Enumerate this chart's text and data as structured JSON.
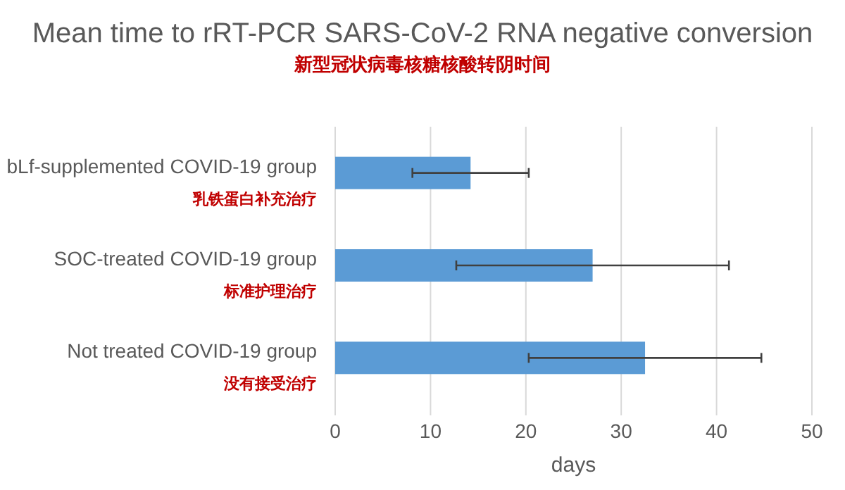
{
  "chart_data": {
    "type": "bar",
    "orientation": "horizontal",
    "title": "Mean time to rRT-PCR SARS-CoV-2 RNA negative conversion",
    "subtitle": "新型冠状病毒核糖核酸转阴时间",
    "categories": [
      "bLf-supplemented COVID-19 group\n乳铁蛋白补充治疗",
      "SOC-treated COVID-19 group\n标准护理治疗",
      "Not treated COVID-19 group\n没有接受治疗"
    ],
    "values": [
      14.2,
      27.0,
      32.5
    ],
    "errors": [
      6.1,
      14.3,
      12.2
    ],
    "color": "#5b9bd5",
    "xlabel": "days",
    "xlim": [
      0,
      50
    ],
    "xticks": [
      0,
      10,
      20,
      30,
      40,
      50
    ],
    "grid": "x"
  }
}
